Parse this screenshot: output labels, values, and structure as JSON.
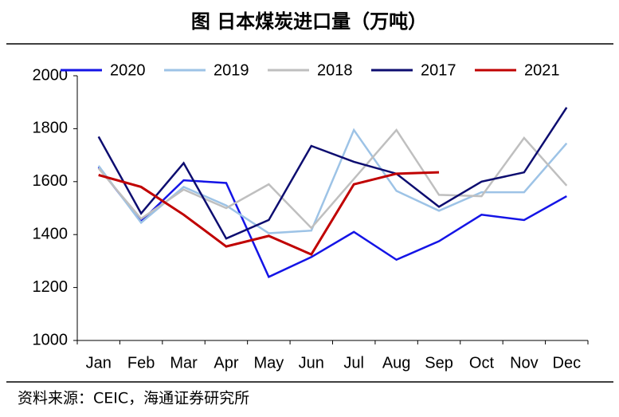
{
  "chart_data": {
    "type": "line",
    "title": "图  日本煤炭进口量（万吨）",
    "source": "资料来源：CEIC，海通证券研究所",
    "categories": [
      "Jan",
      "Feb",
      "Mar",
      "Apr",
      "May",
      "Jun",
      "Jul",
      "Aug",
      "Sep",
      "Oct",
      "Nov",
      "Dec"
    ],
    "series": [
      {
        "name": "2020",
        "color": "#1414e6",
        "values": [
          1655,
          1450,
          1605,
          1595,
          1240,
          1315,
          1410,
          1305,
          1375,
          1475,
          1455,
          1545
        ]
      },
      {
        "name": "2019",
        "color": "#9dc3e6",
        "values": [
          1660,
          1445,
          1580,
          1510,
          1405,
          1415,
          1795,
          1565,
          1490,
          1560,
          1560,
          1745
        ]
      },
      {
        "name": "2018",
        "color": "#bfbfbf",
        "values": [
          1650,
          1460,
          1570,
          1500,
          1590,
          1425,
          1610,
          1795,
          1550,
          1545,
          1765,
          1585
        ]
      },
      {
        "name": "2017",
        "color": "#0d0d70",
        "values": [
          1770,
          1480,
          1670,
          1385,
          1455,
          1735,
          1675,
          1630,
          1505,
          1600,
          1635,
          1880
        ]
      },
      {
        "name": "2021",
        "color": "#c00000",
        "values": [
          1625,
          1580,
          1475,
          1355,
          1395,
          1325,
          1590,
          1630,
          1635,
          null,
          null,
          null
        ]
      }
    ],
    "ylim": [
      1000,
      2000
    ],
    "yticks": [
      1000,
      1200,
      1400,
      1600,
      1800,
      2000
    ]
  }
}
